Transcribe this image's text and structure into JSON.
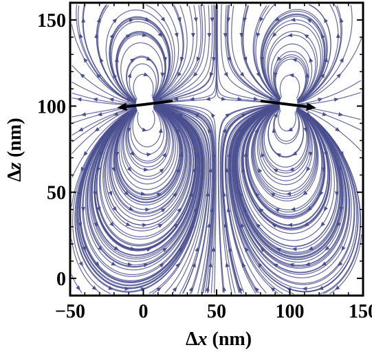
{
  "chart_data": {
    "type": "streamplot",
    "title": "",
    "xlabel_symbol": "Δ",
    "xlabel_var": "x",
    "xlabel_unit": " (nm)",
    "ylabel_symbol": "Δ",
    "ylabel_var": "z",
    "ylabel_unit": " (nm)",
    "xlim": [
      -50,
      150
    ],
    "ylim": [
      -10,
      160
    ],
    "x_ticks": [
      -50,
      0,
      50,
      100,
      150
    ],
    "y_ticks": [
      0,
      50,
      100,
      150
    ],
    "x_tick_labels": [
      "−50",
      "0",
      "50",
      "100",
      "150"
    ],
    "y_tick_labels": [
      "0",
      "50",
      "100",
      "150"
    ],
    "dipoles": [
      {
        "from": [
          20,
          103
        ],
        "to": [
          -18,
          99
        ]
      },
      {
        "from": [
          80,
          103
        ],
        "to": [
          118,
          99
        ]
      }
    ],
    "stream_color": "#4a4f8f",
    "dipole_color": "#000000",
    "grid": false,
    "frame_ticks": "inward, all four sides"
  }
}
